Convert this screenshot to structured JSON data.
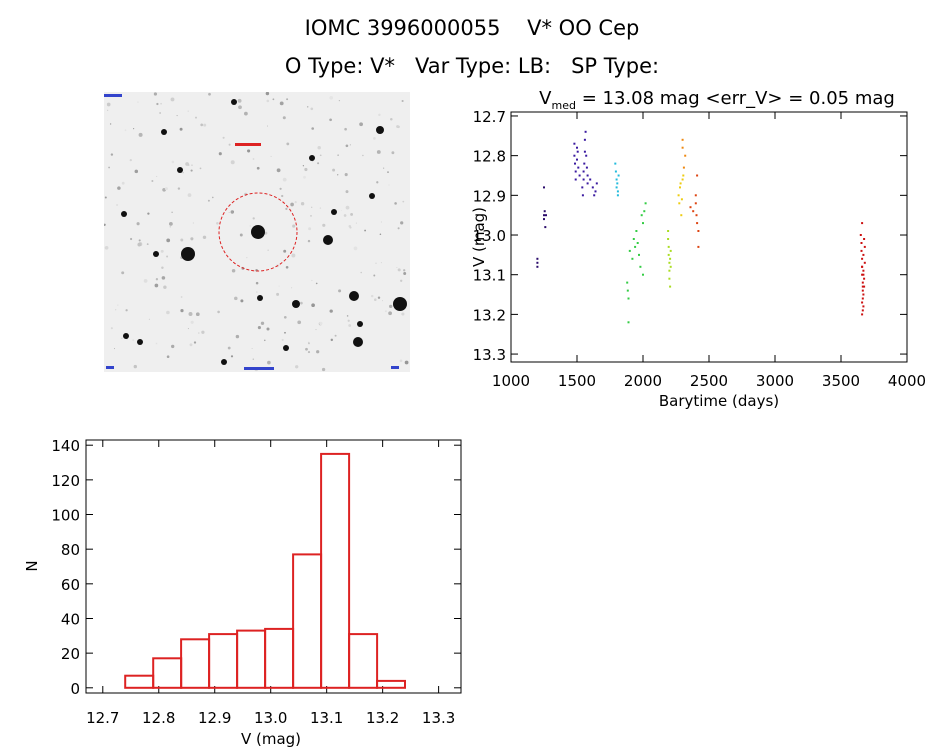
{
  "header": {
    "line1": "IOMC 3996000055    V* OO Cep",
    "line2": "O Type: V*   Var Type: LB:   SP Type:"
  },
  "thumbnail": {
    "accent_ring": "#dd2222",
    "label_color": "#3344cc"
  },
  "chart_data": [
    {
      "type": "scatter",
      "title": "V_med = 13.08 mag <err_V> = 0.05 mag",
      "title_parts": {
        "v": "V",
        "sub": "med",
        "rest": " = 13.08 mag <err_V> = 0.05 mag"
      },
      "xlabel": "Barytime (days)",
      "ylabel": "V (mag)",
      "xlim": [
        1000,
        4000
      ],
      "ylim": [
        13.32,
        12.69
      ],
      "xticks": [
        1000,
        1500,
        2000,
        2500,
        3000,
        3500,
        4000
      ],
      "yticks": [
        12.7,
        12.8,
        12.9,
        13.0,
        13.1,
        13.2,
        13.3
      ],
      "series": [
        {
          "color": "#2a0a6a",
          "x": [
            1200,
            1200,
            1200,
            1250,
            1250,
            1250,
            1255,
            1260,
            1265
          ],
          "y": [
            13.06,
            13.07,
            13.08,
            12.88,
            12.95,
            12.96,
            12.94,
            12.98,
            12.95
          ]
        },
        {
          "color": "#3a1aa0",
          "x": [
            1480,
            1480,
            1485,
            1490,
            1490,
            1500,
            1500,
            1505,
            1510,
            1520,
            1540,
            1545,
            1550,
            1550,
            1555,
            1560,
            1560,
            1565,
            1570,
            1575,
            1580,
            1580,
            1600,
            1620,
            1630,
            1640,
            1650
          ],
          "y": [
            12.77,
            12.8,
            12.82,
            12.84,
            12.86,
            12.78,
            12.81,
            12.79,
            12.83,
            12.85,
            12.88,
            12.9,
            12.84,
            12.86,
            12.82,
            12.79,
            12.76,
            12.74,
            12.8,
            12.83,
            12.85,
            12.87,
            12.86,
            12.88,
            12.9,
            12.89,
            12.87
          ]
        },
        {
          "color": "#22bbdd",
          "x": [
            1790,
            1795,
            1800,
            1800,
            1805,
            1810,
            1810,
            1815
          ],
          "y": [
            12.82,
            12.84,
            12.86,
            12.88,
            12.87,
            12.89,
            12.9,
            12.85
          ]
        },
        {
          "color": "#33cc44",
          "x": [
            1880,
            1885,
            1890,
            1890,
            1900,
            1920,
            1930,
            1940,
            1950,
            1960,
            1970,
            1980,
            1990,
            2000,
            2000,
            2010,
            2020
          ],
          "y": [
            13.12,
            13.14,
            13.16,
            13.22,
            13.04,
            13.06,
            13.01,
            13.03,
            12.99,
            13.02,
            13.05,
            13.08,
            12.95,
            12.97,
            13.1,
            12.94,
            12.92
          ]
        },
        {
          "color": "#aadd22",
          "x": [
            2190,
            2190,
            2195,
            2195,
            2200,
            2200,
            2200,
            2205,
            2205,
            2210,
            2210
          ],
          "y": [
            12.99,
            13.01,
            13.03,
            13.05,
            13.07,
            13.09,
            13.11,
            13.13,
            13.06,
            13.04,
            13.08
          ]
        },
        {
          "color": "#eecc11",
          "x": [
            2270,
            2275,
            2280,
            2285,
            2290,
            2295,
            2300,
            2305
          ],
          "y": [
            12.9,
            12.92,
            12.88,
            12.87,
            12.95,
            12.91,
            12.86,
            12.85
          ]
        },
        {
          "color": "#ee8811",
          "x": [
            2300,
            2300,
            2310,
            2320
          ],
          "y": [
            12.76,
            12.78,
            12.83,
            12.8
          ]
        },
        {
          "color": "#dd4411",
          "x": [
            2360,
            2380,
            2400,
            2400,
            2405,
            2410,
            2410,
            2420,
            2420
          ],
          "y": [
            12.93,
            12.94,
            12.9,
            12.92,
            12.95,
            12.97,
            12.85,
            12.99,
            13.03
          ]
        },
        {
          "color": "#cc1111",
          "x": [
            3650,
            3655,
            3655,
            3660,
            3660,
            3660,
            3665,
            3665,
            3665,
            3670,
            3670,
            3670,
            3675,
            3675,
            3680,
            3680,
            3660,
            3660,
            3665,
            3670,
            3675,
            3660,
            3665,
            3670,
            3660
          ],
          "y": [
            13.0,
            13.02,
            13.04,
            13.06,
            13.08,
            13.1,
            13.12,
            13.14,
            13.16,
            13.18,
            13.05,
            13.09,
            13.11,
            13.13,
            13.07,
            13.03,
            12.97,
            13.2,
            13.19,
            13.15,
            13.01,
            13.17,
            13.13,
            13.1,
            13.08
          ]
        }
      ]
    },
    {
      "type": "bar",
      "xlabel": "V (mag)",
      "ylabel": "N",
      "xlim": [
        12.67,
        13.34
      ],
      "ylim": [
        -3,
        143
      ],
      "xticks": [
        12.7,
        12.8,
        12.9,
        13.0,
        13.1,
        13.2,
        13.3
      ],
      "yticks": [
        0,
        20,
        40,
        60,
        80,
        100,
        120,
        140
      ],
      "bin_edges": [
        12.74,
        12.79,
        12.84,
        12.89,
        12.94,
        12.99,
        13.04,
        13.09,
        13.14,
        13.19,
        13.24
      ],
      "values": [
        7,
        17,
        28,
        31,
        33,
        34,
        77,
        135,
        31,
        4
      ],
      "bar_color": "#dd2222"
    }
  ]
}
